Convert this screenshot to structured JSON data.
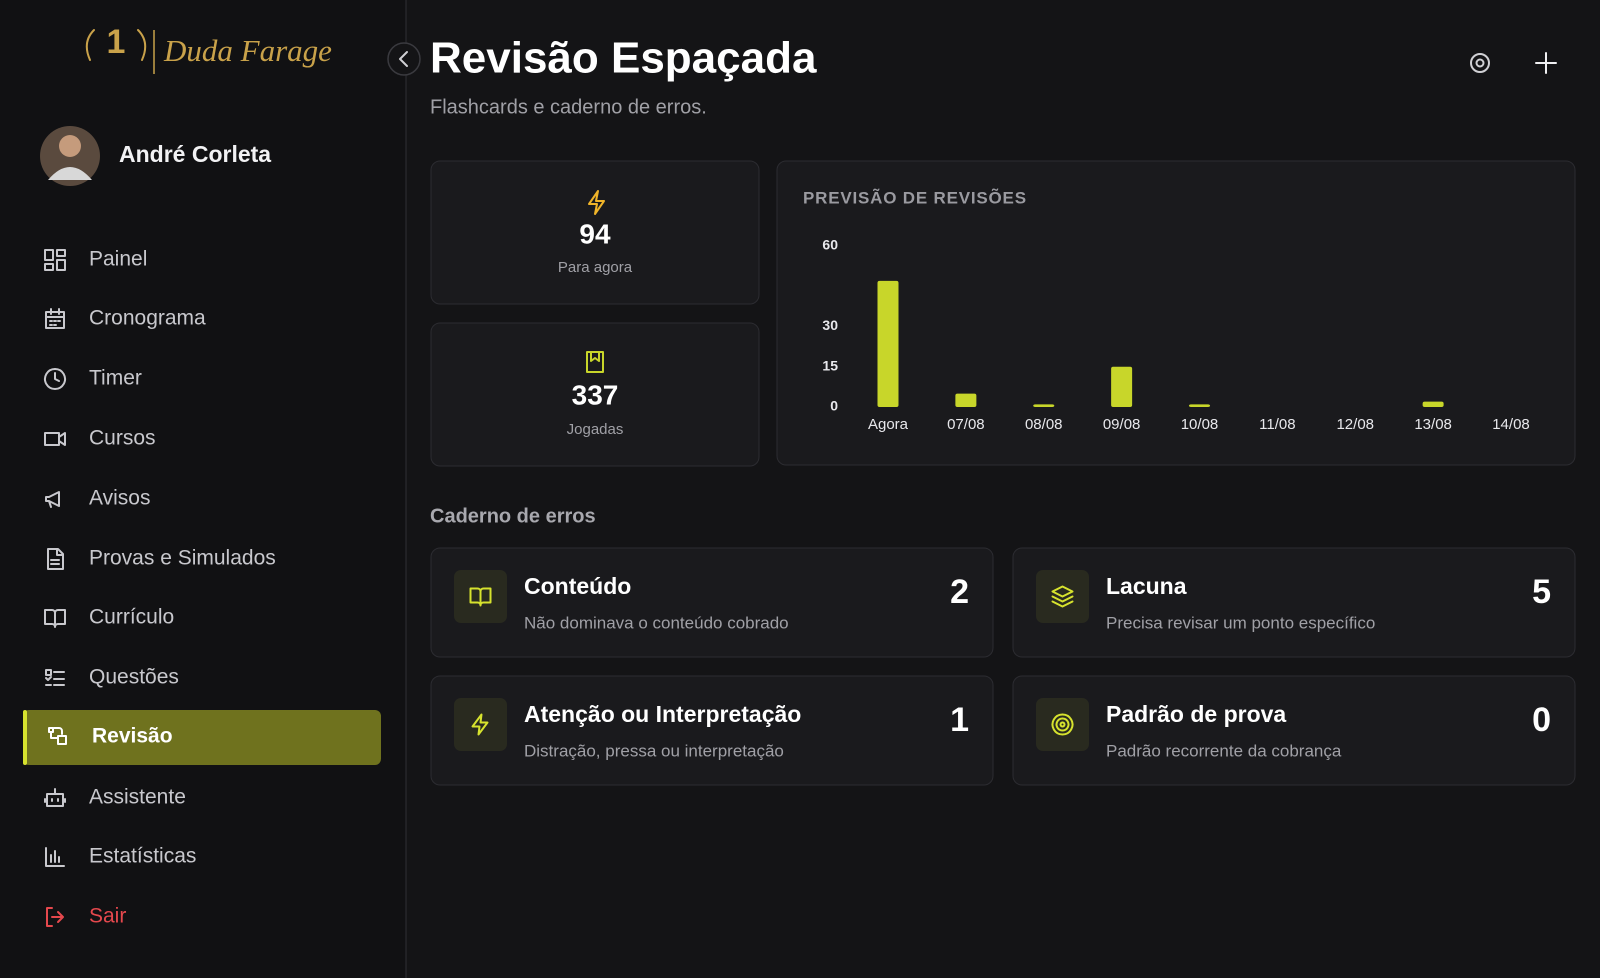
{
  "sidebar": {
    "logo": "Duda Farage",
    "user": "André Corleta",
    "nav": [
      "Painel",
      "Cronograma",
      "Timer",
      "Cursos",
      "Avisos",
      "Provas e Simulados",
      "Currículo",
      "Questões",
      "Revisão",
      "Assistente",
      "Estatísticas",
      "Sair"
    ]
  },
  "header": {
    "title": "Revisão Espaçada",
    "subtitle": "Flashcards e caderno de erros."
  },
  "stats": [
    {
      "value": 94,
      "label": "Para agora"
    },
    {
      "value": 337,
      "label": "Jogadas"
    }
  ],
  "chart_data": {
    "type": "bar",
    "title": "PREVISÃO DE REVISÕES",
    "categories": [
      "Agora",
      "07/08",
      "08/08",
      "09/08",
      "10/08",
      "11/08",
      "12/08",
      "13/08",
      "14/08"
    ],
    "values": [
      47,
      5,
      1,
      15,
      1,
      0,
      0,
      2,
      0
    ],
    "color": "#c8d62a",
    "ylim": [
      0,
      60
    ],
    "yticks": [
      0,
      15,
      30,
      60
    ],
    "grid": false
  },
  "errors": {
    "title": "Caderno de erros",
    "items": [
      {
        "name": "Conteúdo",
        "description": "Não dominava o conteúdo cobrado",
        "count": 2
      },
      {
        "name": "Lacuna",
        "description": "Precisa revisar um ponto específico",
        "count": 5
      },
      {
        "name": "Atenção ou Interpretação",
        "description": "Distração, pressa ou interpretação",
        "count": 1
      },
      {
        "name": "Padrão de prova",
        "description": "Padrão recorrente da cobrança",
        "count": 0
      }
    ]
  }
}
